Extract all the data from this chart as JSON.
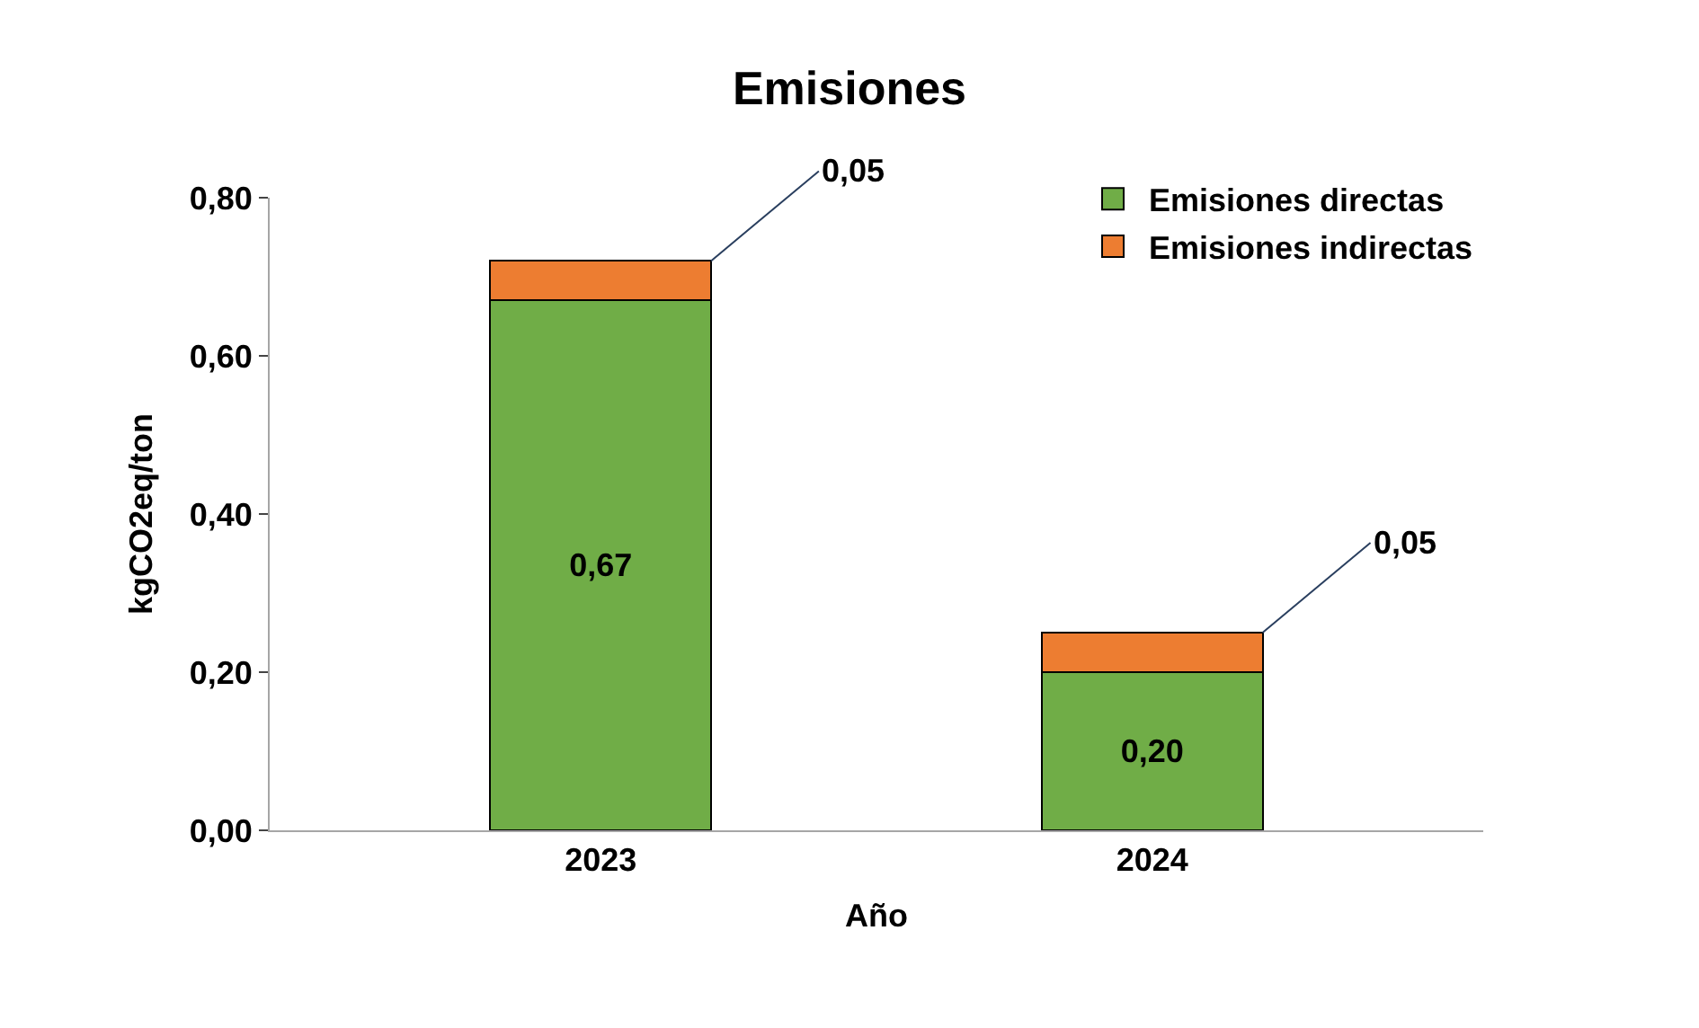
{
  "chart_data": {
    "type": "bar",
    "title": "Emisiones",
    "xlabel": "Año",
    "ylabel": "kgCO2eq/ton",
    "categories": [
      "2023",
      "2024"
    ],
    "stacked": true,
    "series": [
      {
        "name": "Emisiones directas",
        "color": "#70ad47",
        "values": [
          0.67,
          0.2
        ],
        "value_labels": [
          "0,67",
          "0,20"
        ]
      },
      {
        "name": "Emisiones indirectas",
        "color": "#ed7d31",
        "values": [
          0.05,
          0.05
        ],
        "value_labels": [
          "0,05",
          "0,05"
        ]
      }
    ],
    "ylim": [
      0,
      0.8
    ],
    "yticks": [
      {
        "value": 0,
        "label": "0,00"
      },
      {
        "value": 0.2,
        "label": "0,20"
      },
      {
        "value": 0.4,
        "label": "0,40"
      },
      {
        "value": 0.6,
        "label": "0,60"
      },
      {
        "value": 0.8,
        "label": "0,80"
      }
    ],
    "legend": "top right"
  }
}
